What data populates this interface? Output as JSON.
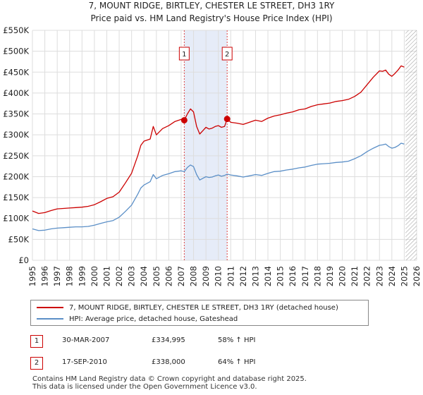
{
  "title_line1": "7, MOUNT RIDGE, BIRTLEY, CHESTER LE STREET, DH3 1RY",
  "title_line2": "Price paid vs. HM Land Registry's House Price Index (HPI)",
  "colors": {
    "property": "#cc0000",
    "hpi": "#5b8fc7",
    "highlight": "#e6ecf8",
    "grid": "#dddddd"
  },
  "chart_data": {
    "type": "line",
    "xlim": [
      1995,
      2026
    ],
    "ylim": [
      0,
      550000
    ],
    "x_ticks": [
      "1995",
      "1996",
      "1997",
      "1998",
      "1999",
      "2000",
      "2001",
      "2002",
      "2003",
      "2004",
      "2005",
      "2006",
      "2007",
      "2008",
      "2009",
      "2010",
      "2011",
      "2012",
      "2013",
      "2014",
      "2015",
      "2016",
      "2017",
      "2018",
      "2019",
      "2020",
      "2021",
      "2022",
      "2023",
      "2024",
      "2025",
      "2026"
    ],
    "y_ticks": [
      {
        "value": 0,
        "label": "£0"
      },
      {
        "value": 50000,
        "label": "£50K"
      },
      {
        "value": 100000,
        "label": "£100K"
      },
      {
        "value": 150000,
        "label": "£150K"
      },
      {
        "value": 200000,
        "label": "£200K"
      },
      {
        "value": 250000,
        "label": "£250K"
      },
      {
        "value": 300000,
        "label": "£300K"
      },
      {
        "value": 350000,
        "label": "£350K"
      },
      {
        "value": 400000,
        "label": "£400K"
      },
      {
        "value": 450000,
        "label": "£450K"
      },
      {
        "value": 500000,
        "label": "£500K"
      },
      {
        "value": 550000,
        "label": "£550K"
      }
    ],
    "highlight_range": [
      2007.25,
      2010.71
    ],
    "future_from": 2025.1,
    "series": [
      {
        "name": "7, MOUNT RIDGE, BIRTLEY, CHESTER LE STREET, DH3 1RY (detached house)",
        "color": "#cc0000",
        "x": [
          1995.0,
          1995.5,
          1996.0,
          1996.5,
          1997.0,
          1997.5,
          1998.0,
          1998.5,
          1999.0,
          1999.5,
          2000.0,
          2000.5,
          2001.0,
          2001.5,
          2002.0,
          2002.5,
          2003.0,
          2003.5,
          2003.75,
          2004.0,
          2004.5,
          2004.75,
          2005.0,
          2005.5,
          2006.0,
          2006.5,
          2007.0,
          2007.25,
          2007.5,
          2007.75,
          2008.0,
          2008.25,
          2008.5,
          2008.75,
          2009.0,
          2009.25,
          2009.5,
          2009.75,
          2010.0,
          2010.25,
          2010.5,
          2010.71,
          2011.0,
          2011.5,
          2012.0,
          2012.5,
          2013.0,
          2013.5,
          2014.0,
          2014.5,
          2015.0,
          2015.5,
          2016.0,
          2016.5,
          2017.0,
          2017.5,
          2018.0,
          2018.5,
          2019.0,
          2019.5,
          2020.0,
          2020.5,
          2021.0,
          2021.5,
          2022.0,
          2022.5,
          2023.0,
          2023.25,
          2023.5,
          2023.75,
          2024.0,
          2024.25,
          2024.5,
          2024.75,
          2025.0
        ],
        "values": [
          118000,
          112000,
          114000,
          119000,
          123000,
          124000,
          125000,
          126000,
          127000,
          129000,
          133000,
          140000,
          148000,
          152000,
          163000,
          185000,
          208000,
          250000,
          275000,
          285000,
          290000,
          320000,
          300000,
          315000,
          322000,
          332000,
          337000,
          335000,
          350000,
          362000,
          355000,
          320000,
          302000,
          310000,
          318000,
          314000,
          316000,
          320000,
          322000,
          318000,
          320000,
          338000,
          330000,
          328000,
          325000,
          330000,
          335000,
          332000,
          340000,
          345000,
          348000,
          352000,
          355000,
          360000,
          362000,
          368000,
          372000,
          374000,
          376000,
          380000,
          382000,
          385000,
          392000,
          402000,
          420000,
          438000,
          453000,
          452000,
          455000,
          445000,
          440000,
          447000,
          455000,
          465000,
          462000
        ]
      },
      {
        "name": "HPI: Average price, detached house, Gateshead",
        "color": "#5b8fc7",
        "x": [
          1995.0,
          1995.5,
          1996.0,
          1996.5,
          1997.0,
          1997.5,
          1998.0,
          1998.5,
          1999.0,
          1999.5,
          2000.0,
          2000.5,
          2001.0,
          2001.5,
          2002.0,
          2002.5,
          2003.0,
          2003.5,
          2003.75,
          2004.0,
          2004.5,
          2004.75,
          2005.0,
          2005.5,
          2006.0,
          2006.5,
          2007.0,
          2007.25,
          2007.5,
          2007.75,
          2008.0,
          2008.25,
          2008.5,
          2008.75,
          2009.0,
          2009.25,
          2009.5,
          2009.75,
          2010.0,
          2010.25,
          2010.5,
          2010.71,
          2011.0,
          2011.5,
          2012.0,
          2012.5,
          2013.0,
          2013.5,
          2014.0,
          2014.5,
          2015.0,
          2015.5,
          2016.0,
          2016.5,
          2017.0,
          2017.5,
          2018.0,
          2018.5,
          2019.0,
          2019.5,
          2020.0,
          2020.5,
          2021.0,
          2021.5,
          2022.0,
          2022.5,
          2023.0,
          2023.25,
          2023.5,
          2023.75,
          2024.0,
          2024.25,
          2024.5,
          2024.75,
          2025.0
        ],
        "values": [
          75000,
          71000,
          72000,
          75000,
          77000,
          78000,
          79000,
          80000,
          80000,
          81000,
          84000,
          88000,
          92000,
          95000,
          103000,
          117000,
          132000,
          158000,
          173000,
          180000,
          188000,
          205000,
          195000,
          203000,
          207000,
          212000,
          214000,
          212000,
          222000,
          228000,
          224000,
          205000,
          192000,
          196000,
          200000,
          198000,
          199000,
          202000,
          204000,
          201000,
          203000,
          206000,
          204000,
          202000,
          199000,
          202000,
          205000,
          203000,
          208000,
          212000,
          213000,
          216000,
          218000,
          221000,
          223000,
          227000,
          230000,
          231000,
          232000,
          234000,
          235000,
          237000,
          243000,
          250000,
          260000,
          268000,
          275000,
          276000,
          278000,
          272000,
          268000,
          270000,
          274000,
          280000,
          278000
        ]
      }
    ],
    "annotations": [
      {
        "label": "1",
        "x": 2007.25,
        "y": 334995
      },
      {
        "label": "2",
        "x": 2010.71,
        "y": 338000
      }
    ]
  },
  "legend": {
    "property_label": "7, MOUNT RIDGE, BIRTLEY, CHESTER LE STREET, DH3 1RY (detached house)",
    "hpi_label": "HPI: Average price, detached house, Gateshead"
  },
  "sales": [
    {
      "num": "1",
      "date": "30-MAR-2007",
      "price": "£334,995",
      "hpi": "58% ↑ HPI"
    },
    {
      "num": "2",
      "date": "17-SEP-2010",
      "price": "£338,000",
      "hpi": "64% ↑ HPI"
    }
  ],
  "footer_line1": "Contains HM Land Registry data © Crown copyright and database right 2025.",
  "footer_line2": "This data is licensed under the Open Government Licence v3.0."
}
